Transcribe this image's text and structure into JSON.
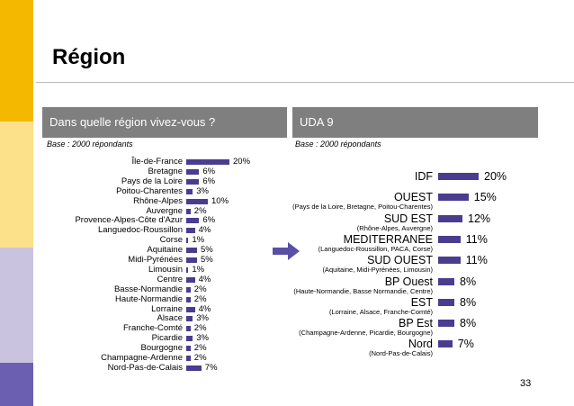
{
  "page": {
    "title": "Région",
    "page_number": "33"
  },
  "colors": {
    "bar": "#4a3d8f",
    "panel_header": "#7f7f7f",
    "stripe_1": "#f5b800",
    "stripe_2": "#fce08a",
    "stripe_3": "#c9c3e0",
    "stripe_4": "#6a5fb0"
  },
  "chart_data": [
    {
      "type": "bar",
      "orientation": "horizontal",
      "title": "Dans quelle région vivez-vous ?",
      "base": "Base : 2000 répondants",
      "categories": [
        "Île-de-France",
        "Bretagne",
        "Pays de la Loire",
        "Poitou-Charentes",
        "Rhône-Alpes",
        "Auvergne",
        "Provence-Alpes-Côte d'Azur",
        "Languedoc-Roussillon",
        "Corse",
        "Aquitaine",
        "Midi-Pyrénées",
        "Limousin",
        "Centre",
        "Basse-Normandie",
        "Haute-Normandie",
        "Lorraine",
        "Alsace",
        "Franche-Comté",
        "Picardie",
        "Bourgogne",
        "Champagne-Ardenne",
        "Nord-Pas-de-Calais"
      ],
      "values": [
        20,
        6,
        6,
        3,
        10,
        2,
        6,
        4,
        1,
        5,
        5,
        1,
        4,
        2,
        2,
        4,
        3,
        2,
        3,
        2,
        2,
        7
      ],
      "value_labels": [
        "20%",
        "6%",
        "6%",
        "3%",
        "10%",
        "2%",
        "6%",
        "4%",
        "1%",
        "5%",
        "5%",
        "1%",
        "4%",
        "2%",
        "2%",
        "4%",
        "3%",
        "2%",
        "3%",
        "2%",
        "2%",
        "7%"
      ]
    },
    {
      "type": "bar",
      "orientation": "horizontal",
      "title": "UDA 9",
      "base": "Base : 2000 répondants",
      "categories": [
        "IDF",
        "OUEST",
        "SUD EST",
        "MEDITERRANEE",
        "SUD OUEST",
        "BP Ouest",
        "EST",
        "BP Est",
        "Nord"
      ],
      "sublabels": [
        "",
        "(Pays de la Loire, Bretagne, Poitou-Charentes)",
        "(Rhône-Alpes, Auvergne)",
        "(Languedoc-Roussillon, PACA, Corse)",
        "(Aquitaine, Midi-Pyrénées, Limousin)",
        "(Haute-Normandie, Basse Normandie, Centre)",
        "(Lorraine, Alsace, Franche-Comté)",
        "(Champagne-Ardenne, Picardie, Bourgogne)",
        "(Nord-Pas-de-Calais)"
      ],
      "values": [
        20,
        15,
        12,
        11,
        11,
        8,
        8,
        8,
        7
      ],
      "value_labels": [
        "20%",
        "15%",
        "12%",
        "11%",
        "11%",
        "8%",
        "8%",
        "8%",
        "7%"
      ]
    }
  ]
}
